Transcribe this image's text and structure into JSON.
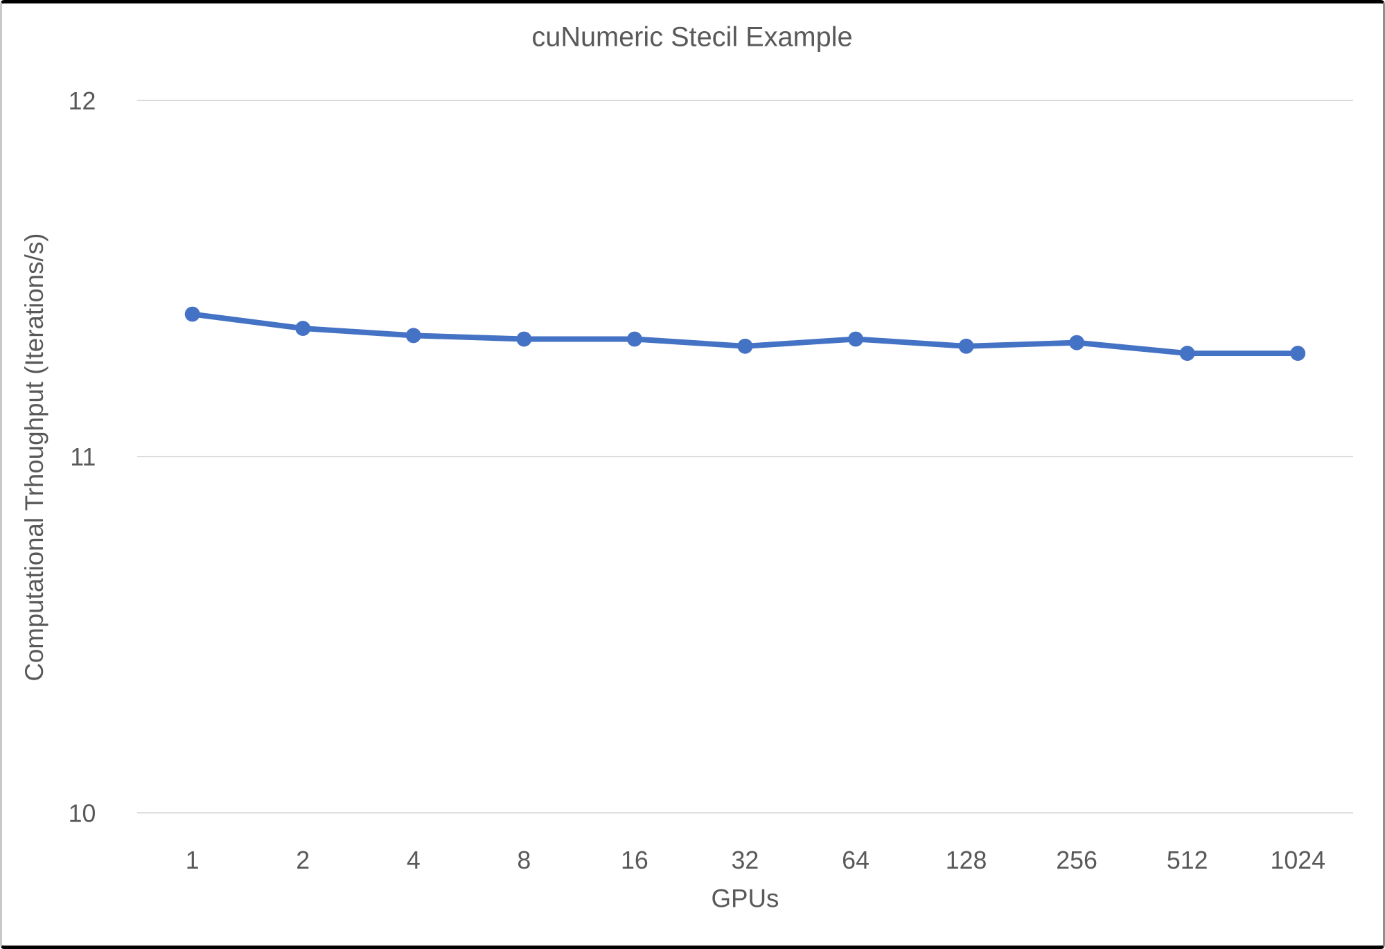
{
  "frame": {
    "background": "#ffffff",
    "border_color": "#000000"
  },
  "chart_data": {
    "type": "line",
    "title": "cuNumeric Stecil Example",
    "xlabel": "GPUs",
    "ylabel": "Computational Trhoughput (Iterations/s)",
    "categories": [
      "1",
      "2",
      "4",
      "8",
      "16",
      "32",
      "64",
      "128",
      "256",
      "512",
      "1024"
    ],
    "values": [
      11.4,
      11.36,
      11.34,
      11.33,
      11.33,
      11.31,
      11.33,
      11.31,
      11.32,
      11.29,
      11.29
    ],
    "ylim": [
      10,
      12
    ],
    "yticks": [
      10,
      11,
      12
    ],
    "grid": true,
    "legend_position": "none",
    "line_color": "#4472C4",
    "marker": "circle",
    "text_color": "#595959",
    "gridline_color": "#D9D9D9"
  }
}
